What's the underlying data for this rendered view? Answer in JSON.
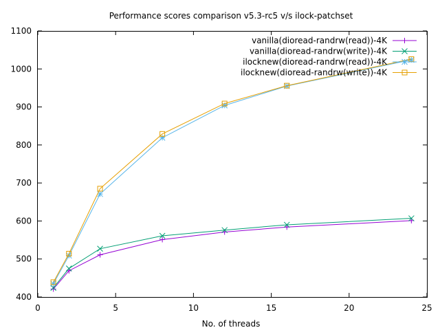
{
  "chart_data": {
    "type": "line",
    "title": "Performance scores comparison v5.3-rc5 v/s ilock-patchset",
    "xlabel": "No. of threads",
    "ylabel": "",
    "xlim": [
      0,
      25
    ],
    "ylim": [
      400,
      1100
    ],
    "xticks": [
      0,
      5,
      10,
      15,
      20,
      25
    ],
    "yticks": [
      400,
      500,
      600,
      700,
      800,
      900,
      1000,
      1100
    ],
    "grid": false,
    "legend_position": "top-right",
    "x": [
      1,
      2,
      4,
      8,
      12,
      16,
      24
    ],
    "series": [
      {
        "name": "vanilla(dioread-randrw(read))-4K",
        "color": "#9400d3",
        "marker": "plus",
        "values": [
          421,
          469,
          511,
          551,
          571,
          584,
          601
        ]
      },
      {
        "name": "vanilla(dioread-randrw(write))-4K",
        "color": "#009e73",
        "marker": "cross",
        "values": [
          424,
          475,
          527,
          561,
          576,
          590,
          607
        ]
      },
      {
        "name": "ilocknew(dioread-randrw(read))-4K",
        "color": "#56b4e9",
        "marker": "star",
        "values": [
          435,
          509,
          671,
          819,
          904,
          955,
          1024
        ]
      },
      {
        "name": "ilocknew(dioread-randrw(write))-4K",
        "color": "#e69f00",
        "marker": "square",
        "values": [
          439,
          514,
          685,
          829,
          909,
          956,
          1026
        ]
      }
    ]
  }
}
